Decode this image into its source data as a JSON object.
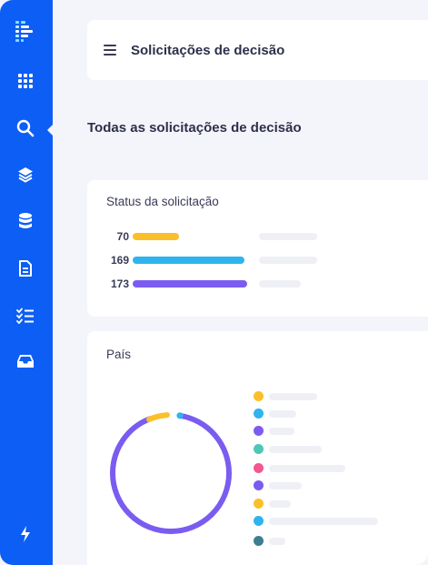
{
  "sidebar": {
    "items": [
      {
        "name": "logo-icon"
      },
      {
        "name": "grid-icon"
      },
      {
        "name": "search-icon"
      },
      {
        "name": "layers-icon"
      },
      {
        "name": "database-icon"
      },
      {
        "name": "document-icon"
      },
      {
        "name": "checklist-icon"
      },
      {
        "name": "inbox-icon"
      },
      {
        "name": "lightning-icon"
      }
    ],
    "active": "search-icon",
    "color": "#0d5ef5"
  },
  "header": {
    "title": "Solicitações de decisão"
  },
  "page": {
    "title": "Todas as solicitações de decisão"
  },
  "status_card": {
    "title": "Status da solicitação",
    "bars": [
      {
        "value": "70",
        "color": "#fbbf2a"
      },
      {
        "value": "169",
        "color": "#2eb4ee"
      },
      {
        "value": "173",
        "color": "#7b5cf0"
      }
    ]
  },
  "country_card": {
    "title": "País",
    "legend_colors": [
      "#fbbf2a",
      "#2eb4ee",
      "#7b5cf0",
      "#4fc7b5",
      "#f0588f",
      "#7b5cf0",
      "#fbbf2a",
      "#2eb4ee",
      "#3f7d90"
    ]
  }
}
